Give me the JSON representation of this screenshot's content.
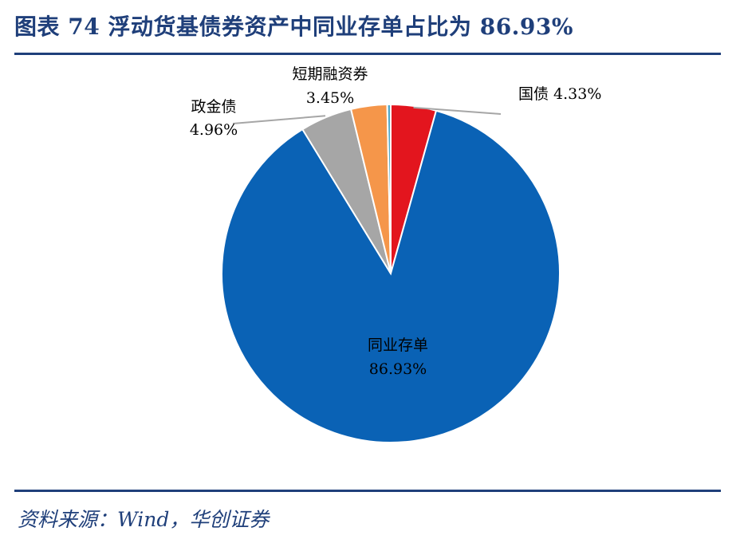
{
  "header": {
    "title": "图表 74 浮动货基债券资产中同业存单占比为 86.93%"
  },
  "footer": {
    "source": "资料来源：Wind，华创证券"
  },
  "colors": {
    "title_blue": "#1f3f7a",
    "ncd": "#0a62b5",
    "treasury": "#e3151e",
    "short_financing": "#f5964a",
    "policy_bank": "#a6a6a6",
    "other": "#4fa7c9"
  },
  "chart_data": {
    "type": "pie",
    "title": "",
    "slices": [
      {
        "name": "国债",
        "value": 4.33,
        "label": "国债 4.33%",
        "color": "#e3151e"
      },
      {
        "name": "同业存单",
        "value": 86.93,
        "label": "86.93%",
        "color": "#0a62b5"
      },
      {
        "name": "政金债",
        "value": 4.96,
        "label": "4.96%",
        "color": "#a6a6a6"
      },
      {
        "name": "短期融资券",
        "value": 3.45,
        "label": "3.45%",
        "color": "#f5964a"
      },
      {
        "name": "",
        "value": 0.33,
        "label": "",
        "color": "#4fa7c9"
      }
    ]
  }
}
